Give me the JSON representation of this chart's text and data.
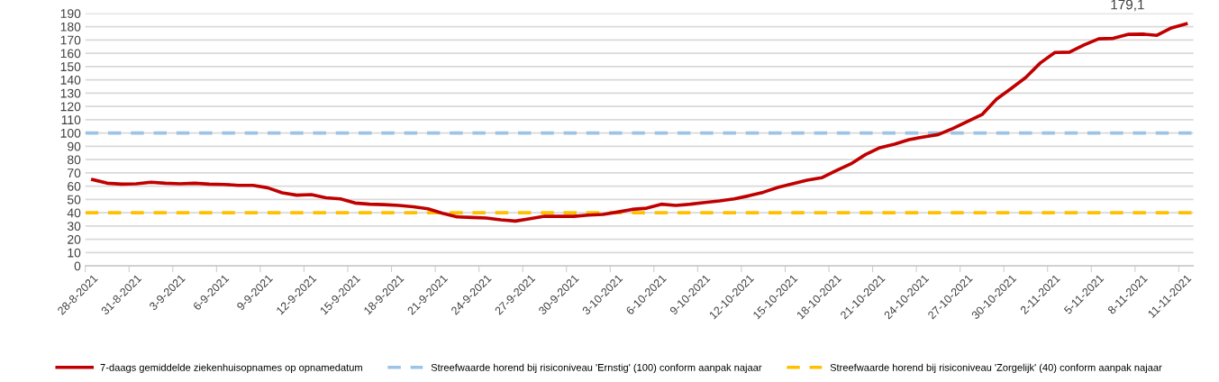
{
  "chart_data": {
    "type": "line",
    "categories": [
      "28-8-2021",
      null,
      null,
      "31-8-2021",
      null,
      null,
      "3-9-2021",
      null,
      null,
      "6-9-2021",
      null,
      null,
      "9-9-2021",
      null,
      null,
      "12-9-2021",
      null,
      null,
      "15-9-2021",
      null,
      null,
      "18-9-2021",
      null,
      null,
      "21-9-2021",
      null,
      null,
      "24-9-2021",
      null,
      null,
      "27-9-2021",
      null,
      null,
      "30-9-2021",
      null,
      null,
      "3-10-2021",
      null,
      null,
      "6-10-2021",
      null,
      null,
      "9-10-2021",
      null,
      null,
      "12-10-2021",
      null,
      null,
      "15-10-2021",
      null,
      null,
      "18-10-2021",
      null,
      null,
      "21-10-2021",
      null,
      null,
      "24-10-2021",
      null,
      null,
      "27-10-2021",
      null,
      null,
      "30-10-2021",
      null,
      null,
      "2-11-2021",
      null,
      null,
      "5-11-2021",
      null,
      null,
      "8-11-2021",
      null,
      null,
      "11-11-2021"
    ],
    "series": [
      {
        "name": "7-daags gemiddelde ziekenhuisopnames op opnamedatum",
        "color": "#c00000",
        "values": [
          64.9,
          62.2,
          61.5,
          61.8,
          62.9,
          62.2,
          61.8,
          62.2,
          61.5,
          61.3,
          60.6,
          60.6,
          58.8,
          55.0,
          53.2,
          53.6,
          51.3,
          50.4,
          47.3,
          46.4,
          46.1,
          45.5,
          44.5,
          43.0,
          39.6,
          36.9,
          36.4,
          36.0,
          34.6,
          33.7,
          35.5,
          37.3,
          37.3,
          37.3,
          38.2,
          38.7,
          40.5,
          42.5,
          43.4,
          46.4,
          45.5,
          46.4,
          47.7,
          48.9,
          50.4,
          52.7,
          55.4,
          59.0,
          61.8,
          64.5,
          66.3,
          71.7,
          76.7,
          83.7,
          88.9,
          91.6,
          95.0,
          97.0,
          98.8,
          103.4,
          108.6,
          113.8,
          125.5,
          133.5,
          141.8,
          152.7,
          160.6,
          160.8,
          166.3,
          170.8,
          171.2,
          174.2,
          174.4,
          173.5,
          179.1,
          182.1
        ]
      }
    ],
    "ref_lines": [
      {
        "axis": "y",
        "value": 100,
        "label": "Streefwaarde horend bij risiconiveau 'Ernstig' (100) conform aanpak najaar",
        "color": "#9dc3e6",
        "line_style": "dashed"
      },
      {
        "axis": "y",
        "value": 40,
        "label": "Streefwaarde horend bij risiconiveau 'Zorgelijk' (40) conform aanpak najaar",
        "color": "#ffc000",
        "line_style": "dashed"
      }
    ],
    "annotations": [
      "179,1"
    ],
    "ylim": [
      0,
      190
    ],
    "yticks": [
      0,
      10,
      20,
      30,
      40,
      50,
      60,
      70,
      80,
      90,
      100,
      110,
      120,
      130,
      140,
      150,
      160,
      170,
      180,
      190
    ],
    "grid": "y",
    "legend": "bottom",
    "marker": "none",
    "line_style": "solid"
  }
}
